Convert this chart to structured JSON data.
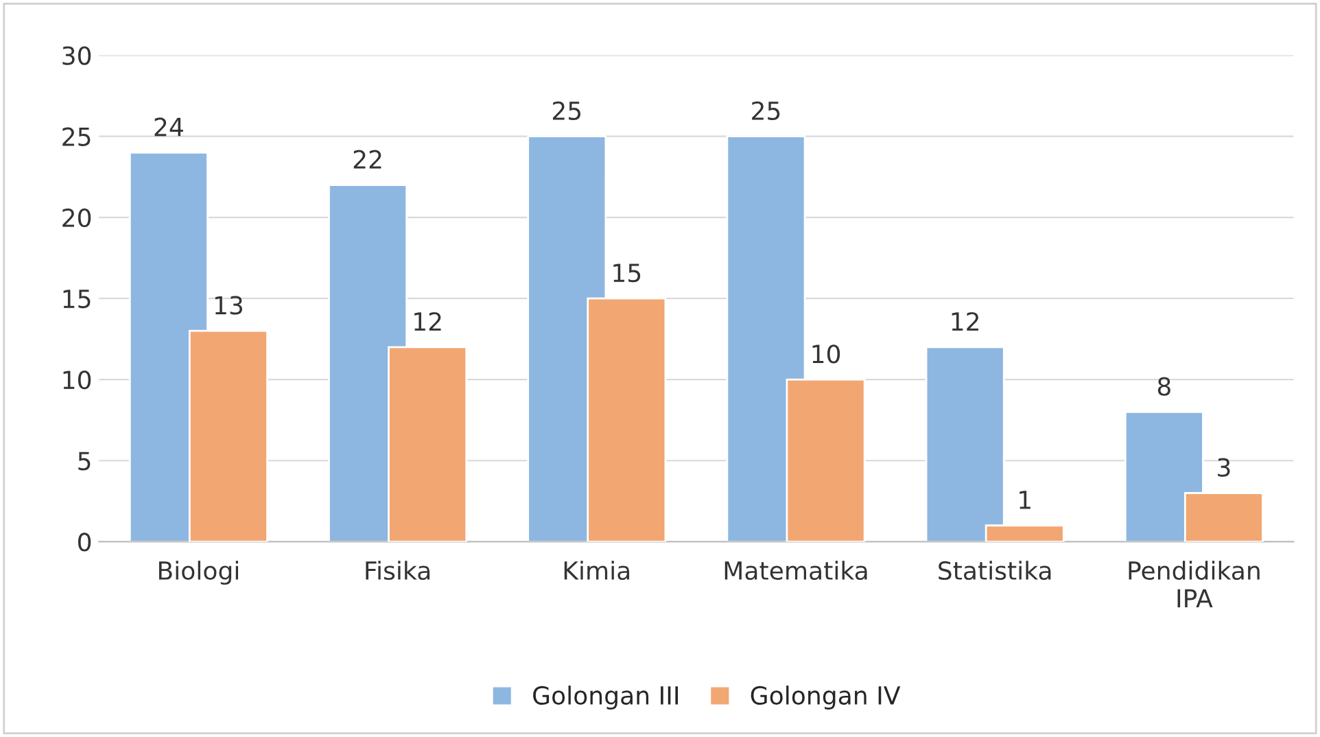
{
  "chart_data": {
    "type": "bar",
    "categories": [
      "Biologi",
      "Fisika",
      "Kimia",
      "Matematika",
      "Statistika",
      "Pendidikan IPA"
    ],
    "series": [
      {
        "name": "Golongan III",
        "color": "#8db7e1",
        "values": [
          24,
          22,
          25,
          25,
          12,
          8
        ]
      },
      {
        "name": "Golongan IV",
        "color": "#f2a672",
        "values": [
          13,
          12,
          15,
          10,
          1,
          3
        ]
      }
    ],
    "ylim": [
      0,
      30
    ],
    "yticks": [
      0,
      5,
      10,
      15,
      20,
      25,
      30
    ],
    "grid": "y",
    "legend": "bottom",
    "data_labels": true
  }
}
